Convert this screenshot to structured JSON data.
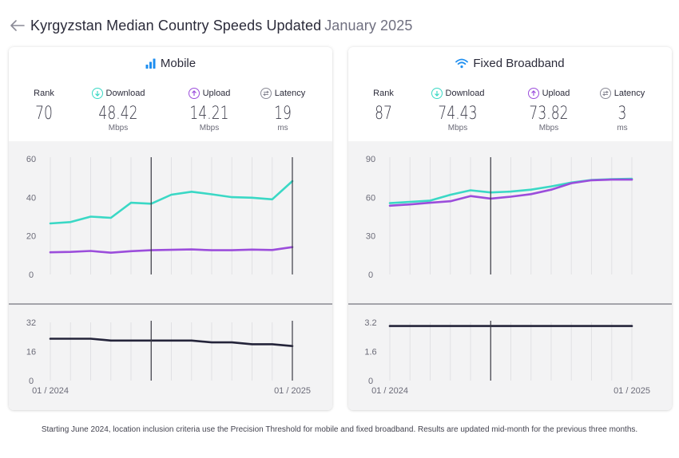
{
  "header": {
    "title": "Kyrgyzstan Median Country Speeds Updated",
    "updated": "January 2025"
  },
  "colors": {
    "download": "#3ad8c5",
    "upload": "#9b4ddb",
    "latency": "#24243a",
    "accent": "#1f8ff0"
  },
  "icons": {
    "back": "arrow-left-icon",
    "mobile": "signal-bars-icon",
    "fixed": "wifi-icon",
    "download": "arrow-down-circle-icon",
    "upload": "arrow-up-circle-icon",
    "latency": "latency-arrows-icon"
  },
  "cards": [
    {
      "title": "Mobile",
      "metrics": {
        "rank": {
          "label": "Rank",
          "value": "70"
        },
        "download": {
          "label": "Download",
          "value": "48.42",
          "unit": "Mbps"
        },
        "upload": {
          "label": "Upload",
          "value": "14.21",
          "unit": "Mbps"
        },
        "latency": {
          "label": "Latency",
          "value": "19",
          "unit": "ms"
        }
      }
    },
    {
      "title": "Fixed Broadband",
      "metrics": {
        "rank": {
          "label": "Rank",
          "value": "87"
        },
        "download": {
          "label": "Download",
          "value": "74.43",
          "unit": "Mbps"
        },
        "upload": {
          "label": "Upload",
          "value": "73.82",
          "unit": "Mbps"
        },
        "latency": {
          "label": "Latency",
          "value": "3",
          "unit": "ms"
        }
      }
    }
  ],
  "footnote": "Starting June 2024, location inclusion criteria use the Precision Threshold for mobile and fixed broadband. Results are updated mid-month for the previous three months.",
  "chart_data": [
    {
      "type": "line",
      "title": "Mobile",
      "x": [
        "2024-01",
        "2024-02",
        "2024-03",
        "2024-04",
        "2024-05",
        "2024-06",
        "2024-07",
        "2024-08",
        "2024-09",
        "2024-10",
        "2024-11",
        "2024-12",
        "2025-01"
      ],
      "x_tick_labels": [
        "01 / 2024",
        "01 / 2025"
      ],
      "markers": [
        "2024-06",
        "2025-01"
      ],
      "speed": {
        "ylim": [
          0,
          60
        ],
        "yticks": [
          0,
          20,
          40,
          60
        ],
        "series": [
          {
            "key": "download",
            "values": [
              26.5,
              27.2,
              30.0,
              29.4,
              37.2,
              36.7,
              41.4,
              42.9,
              41.6,
              40.1,
              39.8,
              39.0,
              48.42
            ]
          },
          {
            "key": "upload",
            "values": [
              11.5,
              11.7,
              12.2,
              11.3,
              12.1,
              12.6,
              12.8,
              13.0,
              12.6,
              12.6,
              12.9,
              12.7,
              14.21
            ]
          }
        ]
      },
      "latency": {
        "ylim": [
          0,
          32
        ],
        "yticks": [
          0,
          16,
          32
        ],
        "series": [
          {
            "key": "latency",
            "values": [
              23,
              23,
              23,
              22,
              22,
              22,
              22,
              22,
              21,
              21,
              20,
              20,
              19
            ]
          }
        ]
      }
    },
    {
      "type": "line",
      "title": "Fixed Broadband",
      "x": [
        "2024-01",
        "2024-02",
        "2024-03",
        "2024-04",
        "2024-05",
        "2024-06",
        "2024-07",
        "2024-08",
        "2024-09",
        "2024-10",
        "2024-11",
        "2024-12",
        "2025-01"
      ],
      "x_tick_labels": [
        "01 / 2024",
        "01 / 2025"
      ],
      "markers": [
        "2024-06"
      ],
      "speed": {
        "ylim": [
          0,
          90
        ],
        "yticks": [
          0,
          30,
          60,
          90
        ],
        "series": [
          {
            "key": "download",
            "values": [
              55.5,
              56.5,
              57.5,
              62.0,
              65.5,
              63.8,
              64.5,
              66.0,
              68.5,
              71.5,
              73.5,
              74.2,
              74.43
            ]
          },
          {
            "key": "upload",
            "values": [
              53.5,
              54.5,
              55.8,
              57.0,
              61.0,
              59.0,
              60.5,
              62.5,
              66.0,
              71.0,
              73.3,
              73.8,
              73.82
            ]
          }
        ]
      },
      "latency": {
        "ylim": [
          0,
          3.2
        ],
        "yticks": [
          0,
          1.6,
          3.2
        ],
        "series": [
          {
            "key": "latency",
            "values": [
              3,
              3,
              3,
              3,
              3,
              3,
              3,
              3,
              3,
              3,
              3,
              3,
              3
            ]
          }
        ]
      }
    }
  ]
}
